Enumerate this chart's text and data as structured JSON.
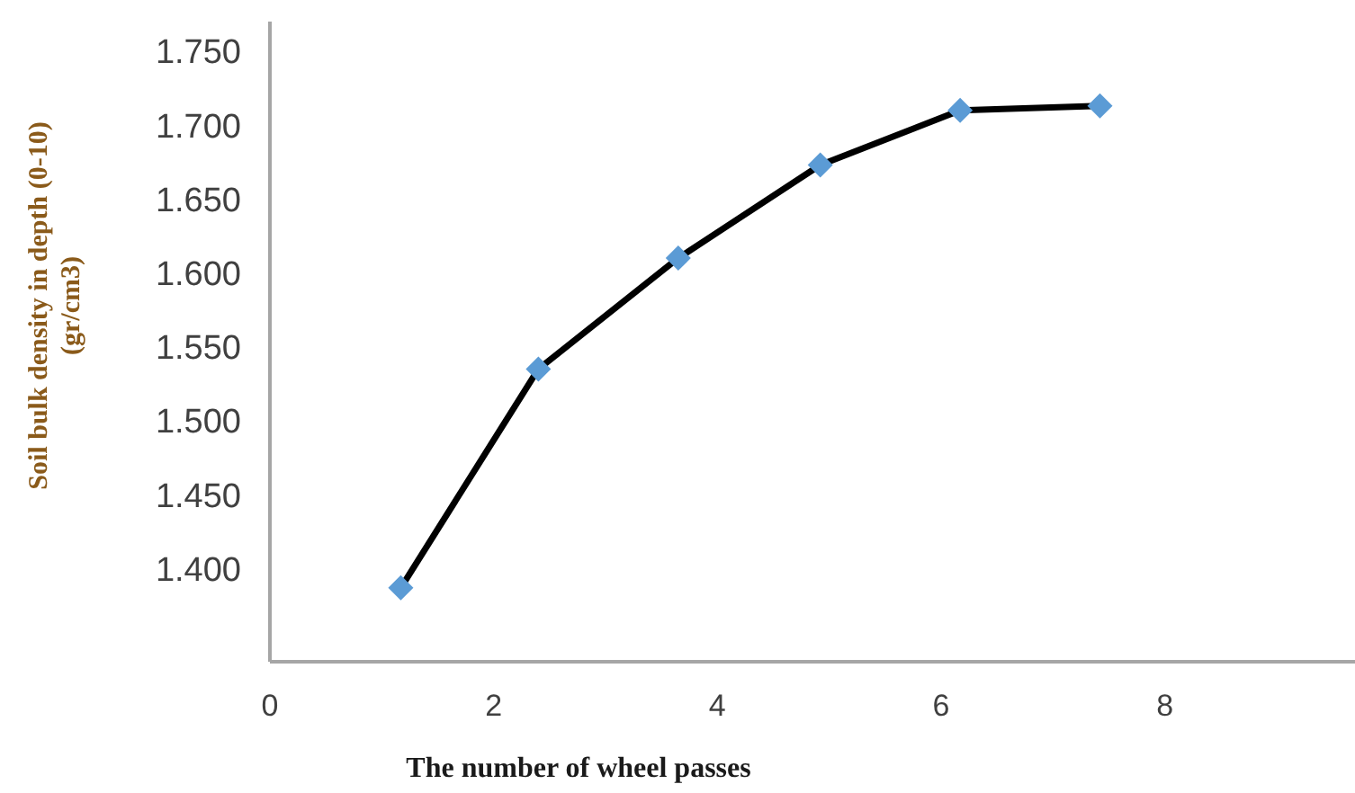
{
  "chart_data": {
    "type": "line",
    "xlabel": "The number of wheel passes",
    "ylabel": "Soil bulk density in depth (0-10)\n(gr/cm3)",
    "x": [
      1.17,
      2.4,
      3.65,
      4.92,
      6.17,
      7.42
    ],
    "series": [
      {
        "color": "#000000",
        "colors": [
          "#5b9bd5",
          "#5b9bd5",
          "#5b9bd5",
          "#5b9bd5",
          "#5b9bd5",
          "#5b9bd5"
        ],
        "values": [
          1.387,
          1.535,
          1.61,
          1.673,
          1.71,
          1.713
        ]
      }
    ],
    "marker": "diamond",
    "line_style": "solid",
    "grid": false,
    "legend": false,
    "xlim": [
      0,
      9.7
    ],
    "xticks": [
      0,
      2,
      4,
      6,
      8
    ],
    "ylim": [
      1.337,
      1.77
    ],
    "yticks": [
      {
        "value": 1.4,
        "label": "1.400"
      },
      {
        "value": 1.45,
        "label": "1.450"
      },
      {
        "value": 1.5,
        "label": "1.500"
      },
      {
        "value": 1.55,
        "label": "1.550"
      },
      {
        "value": 1.6,
        "label": "1.600"
      },
      {
        "value": 1.65,
        "label": "1.650"
      },
      {
        "value": 1.7,
        "label": "1.700"
      },
      {
        "value": 1.75,
        "label": "1.750"
      }
    ]
  }
}
